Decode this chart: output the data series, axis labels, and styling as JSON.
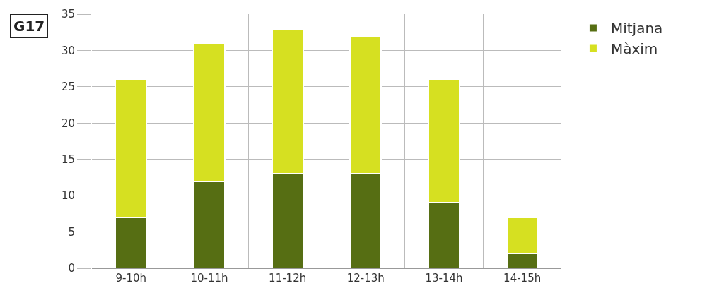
{
  "chart_data": {
    "type": "bar",
    "stacked": true,
    "categories": [
      "9-10h",
      "10-11h",
      "11-12h",
      "12-13h",
      "13-14h",
      "14-15h"
    ],
    "series": [
      {
        "name": "Mitjana",
        "color": "#566e13",
        "values": [
          7,
          12,
          13,
          13,
          9,
          2
        ]
      },
      {
        "name": "Màxim",
        "color": "#d6e021",
        "values": [
          19,
          19,
          20,
          19,
          17,
          5
        ]
      }
    ],
    "ylim": [
      0,
      35
    ],
    "yticks": [
      0,
      5,
      10,
      15,
      20,
      25,
      30,
      35
    ],
    "grid": true,
    "legend": "top right",
    "annotations": [
      "G17"
    ]
  }
}
